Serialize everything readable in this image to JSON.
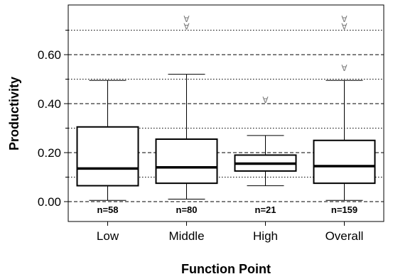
{
  "chart_data": {
    "type": "boxplot",
    "title": "",
    "xlabel": "Function Point",
    "ylabel": "Productivity",
    "ylim": [
      -0.03,
      0.79
    ],
    "yticks": [
      0.0,
      0.2,
      0.4,
      0.6
    ],
    "ytick_labels": [
      "0.00",
      "0.20",
      "0.40",
      "0.60"
    ],
    "minor_yticks": [
      0.1,
      0.3,
      0.5,
      0.7
    ],
    "grid": {
      "dashed": [
        0.0,
        0.2,
        0.4,
        0.6
      ],
      "dotted": [
        0.1,
        0.3,
        0.5,
        0.7
      ]
    },
    "categories": [
      "Low",
      "Middle",
      "High",
      "Overall"
    ],
    "boxes": [
      {
        "category": "Low",
        "whisker_low": 0.005,
        "q1": 0.065,
        "median": 0.135,
        "q3": 0.305,
        "whisker_high": 0.495,
        "n_label": "n=58",
        "outliers": []
      },
      {
        "category": "Middle",
        "whisker_low": 0.01,
        "q1": 0.075,
        "median": 0.14,
        "q3": 0.255,
        "whisker_high": 0.52,
        "n_label": "n=80",
        "outliers": [
          0.715,
          0.745
        ]
      },
      {
        "category": "High",
        "whisker_low": 0.065,
        "q1": 0.125,
        "median": 0.155,
        "q3": 0.19,
        "whisker_high": 0.27,
        "n_label": "n=21",
        "outliers": [
          0.415
        ]
      },
      {
        "category": "Overall",
        "whisker_low": 0.005,
        "q1": 0.075,
        "median": 0.145,
        "q3": 0.25,
        "whisker_high": 0.495,
        "n_label": "n=159",
        "outliers": [
          0.545,
          0.715,
          0.745
        ]
      }
    ],
    "legend": "none"
  }
}
